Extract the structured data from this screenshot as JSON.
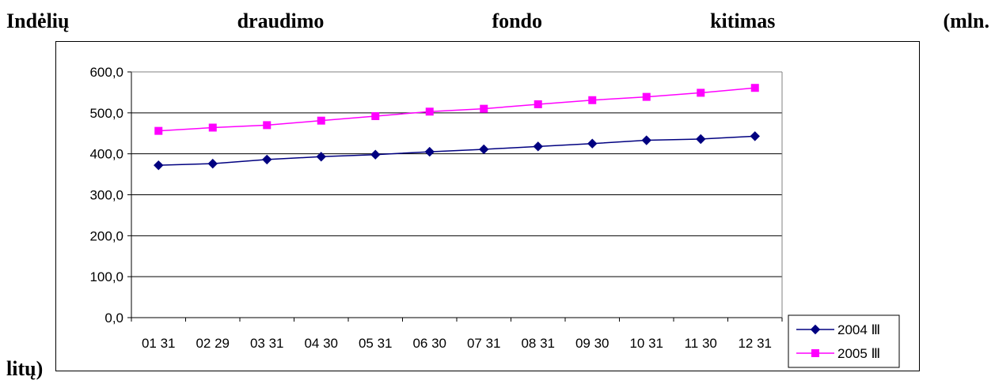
{
  "title": {
    "words": [
      "Indėlių",
      "draudimo",
      "fondo",
      "kitimas",
      "(mln."
    ],
    "tail": "litų)"
  },
  "colors": {
    "series_2004": "#000080",
    "series_2005": "#ff00ff",
    "gridline": "#000000"
  },
  "chart_data": {
    "type": "line",
    "title": "Indėlių draudimo fondo kitimas (mln. litų)",
    "xlabel": "",
    "ylabel": "",
    "categories": [
      "01 31",
      "02 29",
      "03 31",
      "04 30",
      "05 31",
      "06 30",
      "07 31",
      "08 31",
      "09 30",
      "10 31",
      "11 30",
      "12 31"
    ],
    "ylim": [
      0,
      600
    ],
    "ytick_labels": [
      "0,0",
      "100,0",
      "200,0",
      "300,0",
      "400,0",
      "500,0",
      "600,0"
    ],
    "yticks": [
      0,
      100,
      200,
      300,
      400,
      500,
      600
    ],
    "grid": "horizontal",
    "legend_position": "bottom-right",
    "series": [
      {
        "name": "2004 Ⅲ",
        "marker": "diamond",
        "color": "#000080",
        "values": [
          372,
          376,
          386,
          393,
          398,
          405,
          411,
          418,
          425,
          433,
          436,
          443
        ]
      },
      {
        "name": "2005 Ⅲ",
        "marker": "square",
        "color": "#ff00ff",
        "values": [
          456,
          464,
          470,
          481,
          492,
          503,
          510,
          521,
          531,
          539,
          549,
          561
        ]
      }
    ]
  }
}
